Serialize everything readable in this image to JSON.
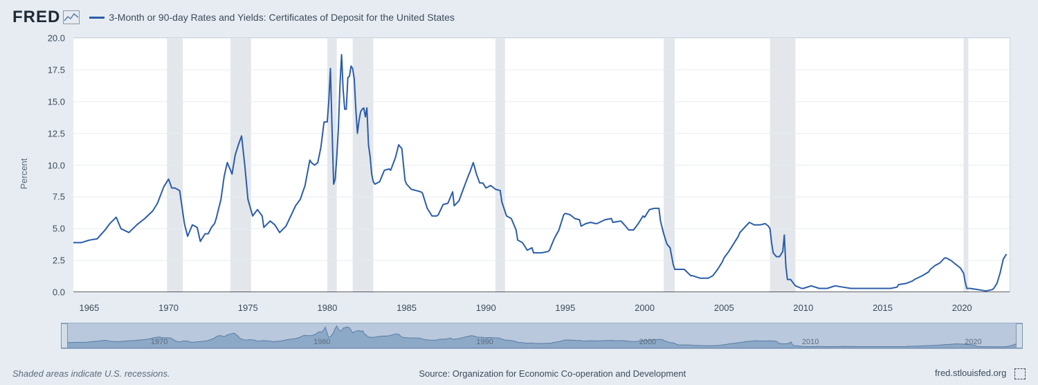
{
  "logo_text": "FRED",
  "series_title": "3-Month or 90-day Rates and Yields: Certificates of Deposit for the United States",
  "y_label": "Percent",
  "footnote": "Shaded areas indicate U.S. recessions.",
  "source": "Source: Organization for Economic Co-operation and Development",
  "site": "fred.stlouisfed.org",
  "legend_name": "3-Month or 90-day Rates and Yields: Certificates of Deposit for the United States",
  "chart": {
    "type": "line",
    "line_color": "#2a5ca8",
    "line_width": 2,
    "background_color": "#ffffff",
    "page_background": "#e6ecf2",
    "grid_color": "#e6ecf2",
    "recession_fill": "#e3e7ec",
    "zero_line_color": "#000000",
    "text_color": "#3b4a5a",
    "title_fontsize": 14,
    "axis_fontsize": 13,
    "x": {
      "min": 1964.0,
      "max": 2023.0,
      "ticks": [
        1965,
        1970,
        1975,
        1980,
        1985,
        1990,
        1995,
        2000,
        2005,
        2010,
        2015,
        2020
      ]
    },
    "y": {
      "min": 0.0,
      "max": 20.0,
      "ticks": [
        0.0,
        2.5,
        5.0,
        7.5,
        10.0,
        12.5,
        15.0,
        17.5,
        20.0
      ]
    },
    "recessions": [
      [
        1969.9,
        1970.9
      ],
      [
        1973.9,
        1975.2
      ],
      [
        1980.0,
        1980.6
      ],
      [
        1981.6,
        1982.9
      ],
      [
        1990.6,
        1991.2
      ],
      [
        2001.2,
        2001.9
      ],
      [
        2007.9,
        2009.5
      ],
      [
        2020.1,
        2020.4
      ]
    ],
    "data": [
      [
        1964.0,
        3.9
      ],
      [
        1964.5,
        3.9
      ],
      [
        1965.0,
        4.1
      ],
      [
        1965.5,
        4.2
      ],
      [
        1966.0,
        4.9
      ],
      [
        1966.3,
        5.4
      ],
      [
        1966.7,
        5.9
      ],
      [
        1967.0,
        5.0
      ],
      [
        1967.5,
        4.7
      ],
      [
        1968.0,
        5.3
      ],
      [
        1968.5,
        5.8
      ],
      [
        1969.0,
        6.4
      ],
      [
        1969.3,
        7.0
      ],
      [
        1969.7,
        8.3
      ],
      [
        1970.0,
        8.9
      ],
      [
        1970.2,
        8.2
      ],
      [
        1970.4,
        8.2
      ],
      [
        1970.7,
        8.0
      ],
      [
        1971.0,
        5.4
      ],
      [
        1971.2,
        4.4
      ],
      [
        1971.5,
        5.3
      ],
      [
        1971.8,
        5.1
      ],
      [
        1972.0,
        4.0
      ],
      [
        1972.3,
        4.6
      ],
      [
        1972.5,
        4.6
      ],
      [
        1972.7,
        5.1
      ],
      [
        1972.9,
        5.4
      ],
      [
        1973.0,
        5.8
      ],
      [
        1973.3,
        7.3
      ],
      [
        1973.5,
        9.1
      ],
      [
        1973.7,
        10.2
      ],
      [
        1974.0,
        9.3
      ],
      [
        1974.2,
        10.8
      ],
      [
        1974.4,
        11.6
      ],
      [
        1974.6,
        12.3
      ],
      [
        1974.8,
        10.0
      ],
      [
        1975.0,
        7.3
      ],
      [
        1975.3,
        6.0
      ],
      [
        1975.6,
        6.5
      ],
      [
        1975.9,
        6.0
      ],
      [
        1976.0,
        5.1
      ],
      [
        1976.4,
        5.6
      ],
      [
        1976.7,
        5.3
      ],
      [
        1977.0,
        4.7
      ],
      [
        1977.4,
        5.2
      ],
      [
        1977.7,
        6.0
      ],
      [
        1978.0,
        6.8
      ],
      [
        1978.3,
        7.3
      ],
      [
        1978.6,
        8.4
      ],
      [
        1978.9,
        10.4
      ],
      [
        1979.0,
        10.2
      ],
      [
        1979.2,
        10.0
      ],
      [
        1979.4,
        10.2
      ],
      [
        1979.6,
        11.4
      ],
      [
        1979.8,
        13.4
      ],
      [
        1980.0,
        13.4
      ],
      [
        1980.1,
        15.1
      ],
      [
        1980.2,
        17.6
      ],
      [
        1980.3,
        12.9
      ],
      [
        1980.4,
        8.5
      ],
      [
        1980.5,
        8.9
      ],
      [
        1980.6,
        10.7
      ],
      [
        1980.7,
        12.9
      ],
      [
        1980.8,
        16.3
      ],
      [
        1980.9,
        18.7
      ],
      [
        1981.0,
        16.0
      ],
      [
        1981.1,
        14.4
      ],
      [
        1981.2,
        14.4
      ],
      [
        1981.3,
        16.9
      ],
      [
        1981.4,
        17.0
      ],
      [
        1981.5,
        17.8
      ],
      [
        1981.6,
        17.6
      ],
      [
        1981.7,
        16.8
      ],
      [
        1981.8,
        14.4
      ],
      [
        1981.9,
        12.5
      ],
      [
        1982.0,
        13.5
      ],
      [
        1982.1,
        14.2
      ],
      [
        1982.2,
        14.4
      ],
      [
        1982.3,
        14.5
      ],
      [
        1982.4,
        13.8
      ],
      [
        1982.5,
        14.5
      ],
      [
        1982.6,
        11.6
      ],
      [
        1982.7,
        10.7
      ],
      [
        1982.8,
        9.3
      ],
      [
        1982.9,
        8.7
      ],
      [
        1983.0,
        8.5
      ],
      [
        1983.3,
        8.7
      ],
      [
        1983.6,
        9.6
      ],
      [
        1983.9,
        9.7
      ],
      [
        1984.0,
        9.6
      ],
      [
        1984.3,
        10.6
      ],
      [
        1984.5,
        11.6
      ],
      [
        1984.7,
        11.3
      ],
      [
        1984.9,
        8.8
      ],
      [
        1985.0,
        8.5
      ],
      [
        1985.3,
        8.1
      ],
      [
        1985.6,
        8.0
      ],
      [
        1985.9,
        7.9
      ],
      [
        1986.0,
        7.8
      ],
      [
        1986.3,
        6.6
      ],
      [
        1986.6,
        6.0
      ],
      [
        1986.9,
        6.0
      ],
      [
        1987.0,
        6.1
      ],
      [
        1987.3,
        6.9
      ],
      [
        1987.6,
        7.0
      ],
      [
        1987.9,
        7.9
      ],
      [
        1988.0,
        6.8
      ],
      [
        1988.3,
        7.2
      ],
      [
        1988.6,
        8.2
      ],
      [
        1988.9,
        9.2
      ],
      [
        1989.0,
        9.5
      ],
      [
        1989.2,
        10.2
      ],
      [
        1989.4,
        9.3
      ],
      [
        1989.6,
        8.6
      ],
      [
        1989.8,
        8.6
      ],
      [
        1990.0,
        8.2
      ],
      [
        1990.3,
        8.4
      ],
      [
        1990.6,
        8.1
      ],
      [
        1990.9,
        8.0
      ],
      [
        1991.0,
        7.1
      ],
      [
        1991.3,
        6.0
      ],
      [
        1991.6,
        5.8
      ],
      [
        1991.9,
        4.9
      ],
      [
        1992.0,
        4.1
      ],
      [
        1992.3,
        3.9
      ],
      [
        1992.6,
        3.3
      ],
      [
        1992.9,
        3.5
      ],
      [
        1993.0,
        3.1
      ],
      [
        1993.5,
        3.1
      ],
      [
        1993.9,
        3.2
      ],
      [
        1994.0,
        3.3
      ],
      [
        1994.3,
        4.2
      ],
      [
        1994.6,
        4.9
      ],
      [
        1994.9,
        6.1
      ],
      [
        1995.0,
        6.2
      ],
      [
        1995.3,
        6.1
      ],
      [
        1995.6,
        5.8
      ],
      [
        1995.9,
        5.7
      ],
      [
        1996.0,
        5.2
      ],
      [
        1996.3,
        5.4
      ],
      [
        1996.6,
        5.5
      ],
      [
        1996.9,
        5.4
      ],
      [
        1997.0,
        5.4
      ],
      [
        1997.5,
        5.7
      ],
      [
        1997.9,
        5.8
      ],
      [
        1998.0,
        5.5
      ],
      [
        1998.5,
        5.6
      ],
      [
        1998.8,
        5.2
      ],
      [
        1999.0,
        4.9
      ],
      [
        1999.3,
        4.9
      ],
      [
        1999.6,
        5.4
      ],
      [
        1999.9,
        6.0
      ],
      [
        2000.0,
        5.9
      ],
      [
        2000.3,
        6.5
      ],
      [
        2000.6,
        6.6
      ],
      [
        2000.9,
        6.6
      ],
      [
        2001.0,
        5.6
      ],
      [
        2001.2,
        4.6
      ],
      [
        2001.4,
        3.8
      ],
      [
        2001.6,
        3.5
      ],
      [
        2001.8,
        2.2
      ],
      [
        2001.9,
        1.8
      ],
      [
        2002.0,
        1.8
      ],
      [
        2002.5,
        1.8
      ],
      [
        2002.9,
        1.3
      ],
      [
        2003.0,
        1.3
      ],
      [
        2003.5,
        1.1
      ],
      [
        2003.9,
        1.1
      ],
      [
        2004.0,
        1.1
      ],
      [
        2004.3,
        1.3
      ],
      [
        2004.6,
        1.8
      ],
      [
        2004.9,
        2.4
      ],
      [
        2005.0,
        2.7
      ],
      [
        2005.3,
        3.2
      ],
      [
        2005.6,
        3.8
      ],
      [
        2005.9,
        4.4
      ],
      [
        2006.0,
        4.7
      ],
      [
        2006.3,
        5.1
      ],
      [
        2006.6,
        5.5
      ],
      [
        2006.9,
        5.3
      ],
      [
        2007.0,
        5.3
      ],
      [
        2007.3,
        5.3
      ],
      [
        2007.6,
        5.4
      ],
      [
        2007.8,
        5.2
      ],
      [
        2007.9,
        5.0
      ],
      [
        2008.0,
        3.9
      ],
      [
        2008.1,
        3.1
      ],
      [
        2008.3,
        2.8
      ],
      [
        2008.5,
        2.8
      ],
      [
        2008.7,
        3.2
      ],
      [
        2008.8,
        4.5
      ],
      [
        2008.9,
        2.0
      ],
      [
        2009.0,
        1.0
      ],
      [
        2009.2,
        1.0
      ],
      [
        2009.5,
        0.5
      ],
      [
        2009.9,
        0.3
      ],
      [
        2010.0,
        0.3
      ],
      [
        2010.5,
        0.5
      ],
      [
        2011.0,
        0.3
      ],
      [
        2011.5,
        0.3
      ],
      [
        2012.0,
        0.5
      ],
      [
        2012.5,
        0.4
      ],
      [
        2013.0,
        0.3
      ],
      [
        2013.5,
        0.3
      ],
      [
        2014.0,
        0.3
      ],
      [
        2014.5,
        0.3
      ],
      [
        2015.0,
        0.3
      ],
      [
        2015.5,
        0.3
      ],
      [
        2015.9,
        0.4
      ],
      [
        2016.0,
        0.6
      ],
      [
        2016.5,
        0.7
      ],
      [
        2016.9,
        0.9
      ],
      [
        2017.0,
        1.0
      ],
      [
        2017.5,
        1.3
      ],
      [
        2017.9,
        1.6
      ],
      [
        2018.0,
        1.8
      ],
      [
        2018.3,
        2.1
      ],
      [
        2018.6,
        2.3
      ],
      [
        2018.9,
        2.7
      ],
      [
        2019.0,
        2.7
      ],
      [
        2019.3,
        2.5
      ],
      [
        2019.6,
        2.2
      ],
      [
        2019.9,
        1.9
      ],
      [
        2020.0,
        1.7
      ],
      [
        2020.1,
        1.5
      ],
      [
        2020.2,
        0.8
      ],
      [
        2020.3,
        0.3
      ],
      [
        2020.5,
        0.3
      ],
      [
        2021.0,
        0.2
      ],
      [
        2021.5,
        0.1
      ],
      [
        2021.9,
        0.2
      ],
      [
        2022.0,
        0.3
      ],
      [
        2022.2,
        0.7
      ],
      [
        2022.4,
        1.5
      ],
      [
        2022.6,
        2.6
      ],
      [
        2022.8,
        3.0
      ]
    ]
  },
  "range_selector": {
    "background": "#b9c8dc",
    "fill": "#8da9c8",
    "line": "#5a7ba3",
    "ticks": [
      1970,
      1980,
      1990,
      2000,
      2010,
      2020
    ]
  }
}
